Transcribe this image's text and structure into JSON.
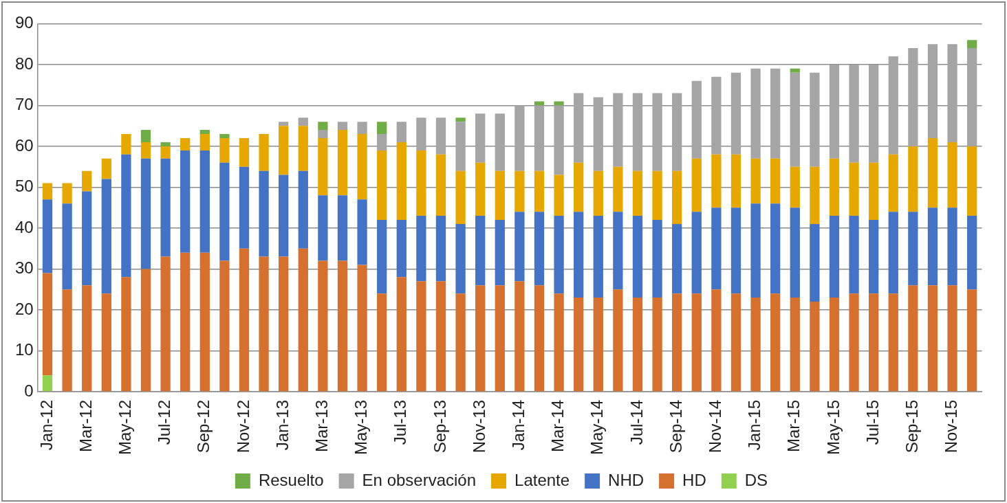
{
  "chart_data": {
    "type": "bar",
    "stacked": true,
    "grid": true,
    "legend": "bottom",
    "categories": [
      "Jan-12",
      null,
      "Mar-12",
      null,
      "May-12",
      null,
      "Jul-12",
      null,
      "Sep-12",
      null,
      "Nov-12",
      null,
      "Jan-13",
      null,
      "Mar-13",
      null,
      "May-13",
      null,
      "Jul-13",
      null,
      "Sep-13",
      null,
      "Nov-13",
      null,
      "Jan-14",
      null,
      "Mar-14",
      null,
      "May-14",
      null,
      "Jul-14",
      null,
      "Sep-14",
      null,
      "Nov-14",
      null,
      "Jan-15",
      null,
      "Mar-15",
      null,
      "May-15",
      null,
      "Jul-15",
      null,
      "Sep-15",
      null,
      "Nov-15",
      null
    ],
    "ylim": [
      0,
      90
    ],
    "yticks": [
      0,
      10,
      20,
      30,
      40,
      50,
      60,
      70,
      80,
      90
    ],
    "series": [
      {
        "name": "Resuelto",
        "color": "#70ad47",
        "values": [
          0,
          0,
          0,
          0,
          0,
          3,
          1,
          0,
          1,
          1,
          0,
          0,
          0,
          0,
          2,
          0,
          0,
          3,
          0,
          0,
          0,
          1,
          0,
          0,
          0,
          1,
          1,
          0,
          0,
          0,
          0,
          0,
          0,
          0,
          0,
          0,
          0,
          0,
          1,
          0,
          0,
          0,
          0,
          0,
          0,
          0,
          0,
          2
        ]
      },
      {
        "name": "En observación",
        "color": "#a5a5a5",
        "values": [
          0,
          0,
          0,
          0,
          0,
          0,
          0,
          0,
          0,
          0,
          0,
          0,
          1,
          2,
          2,
          2,
          3,
          4,
          5,
          8,
          9,
          12,
          12,
          14,
          16,
          16,
          17,
          17,
          18,
          18,
          19,
          19,
          19,
          19,
          19,
          20,
          22,
          22,
          23,
          23,
          23,
          24,
          24,
          24,
          24,
          23,
          24,
          24
        ]
      },
      {
        "name": "Latente",
        "color": "#e6a800",
        "values": [
          4,
          5,
          5,
          5,
          5,
          4,
          3,
          3,
          4,
          6,
          7,
          9,
          12,
          11,
          14,
          16,
          16,
          17,
          19,
          16,
          15,
          13,
          13,
          12,
          10,
          10,
          10,
          12,
          11,
          11,
          11,
          12,
          13,
          13,
          13,
          13,
          11,
          11,
          10,
          14,
          14,
          13,
          14,
          14,
          16,
          17,
          16,
          17
        ]
      },
      {
        "name": "NHD",
        "color": "#4472c4",
        "values": [
          18,
          21,
          23,
          28,
          30,
          27,
          24,
          25,
          25,
          24,
          20,
          21,
          20,
          19,
          16,
          16,
          16,
          18,
          14,
          16,
          16,
          17,
          17,
          16,
          17,
          18,
          19,
          21,
          20,
          19,
          20,
          19,
          17,
          20,
          20,
          21,
          23,
          22,
          22,
          19,
          20,
          19,
          18,
          20,
          18,
          19,
          19,
          18
        ]
      },
      {
        "name": "HD",
        "color": "#d5702e",
        "values": [
          25,
          25,
          26,
          24,
          28,
          30,
          33,
          34,
          34,
          32,
          35,
          33,
          33,
          35,
          32,
          32,
          31,
          24,
          28,
          27,
          27,
          24,
          26,
          26,
          27,
          26,
          24,
          23,
          23,
          25,
          23,
          23,
          24,
          24,
          25,
          24,
          23,
          24,
          23,
          22,
          23,
          24,
          24,
          24,
          26,
          26,
          26,
          25
        ]
      },
      {
        "name": "DS",
        "color": "#92d050",
        "values": [
          4,
          0,
          0,
          0,
          0,
          0,
          0,
          0,
          0,
          0,
          0,
          0,
          0,
          0,
          0,
          0,
          0,
          0,
          0,
          0,
          0,
          0,
          0,
          0,
          0,
          0,
          0,
          0,
          0,
          0,
          0,
          0,
          0,
          0,
          0,
          0,
          0,
          0,
          0,
          0,
          0,
          0,
          0,
          0,
          0,
          0,
          0,
          0
        ]
      }
    ]
  }
}
